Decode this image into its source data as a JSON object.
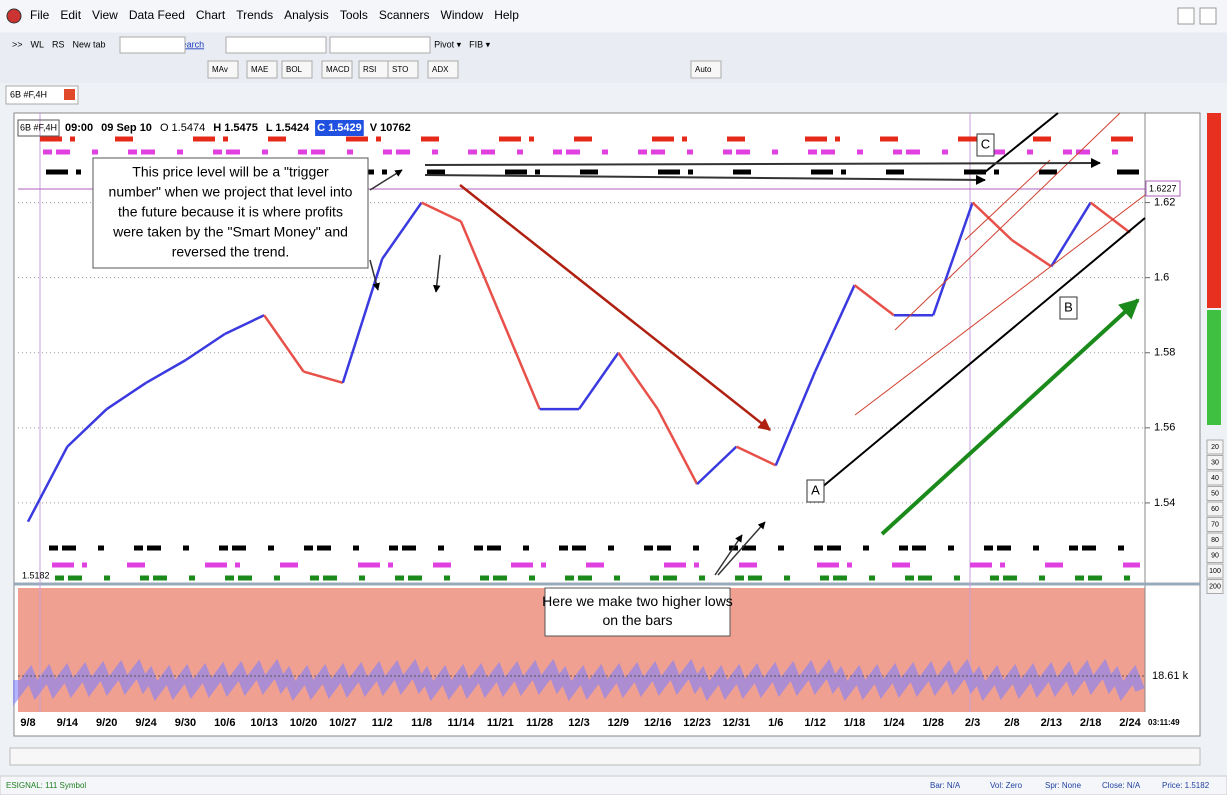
{
  "menu": [
    "File",
    "Edit",
    "View",
    "Data Feed",
    "Chart",
    "Trends",
    "Analysis",
    "Tools",
    "Scanners",
    "Window",
    "Help"
  ],
  "toolbar1": [
    ">>",
    "WL",
    "RS",
    "New tab",
    "Search",
    "Pivot ▾",
    "FIB ▾"
  ],
  "toolbar2": [
    "MAv",
    "MAE",
    "BOL",
    "MACD",
    "RSI",
    "STO",
    "ADX",
    "Auto"
  ],
  "tab": "6B #F,4H",
  "header": {
    "symbol": "6B #F,4H",
    "time": "09:00",
    "date": "09 Sep 10",
    "open": "O 1.5474",
    "high": "H 1.5475",
    "low": "L 1.5424",
    "close": "C 1.5429",
    "volume": "V 10762"
  },
  "chart_data": {
    "type": "line",
    "categories": [
      "9/8",
      "9/14",
      "9/20",
      "9/24",
      "9/30",
      "10/6",
      "10/13",
      "10/20",
      "10/27",
      "11/2",
      "11/8",
      "11/14",
      "11/21",
      "11/28",
      "12/3",
      "12/9",
      "12/16",
      "12/23",
      "12/31",
      "1/6",
      "1/12",
      "1/18",
      "1/24",
      "1/28",
      "2/3",
      "2/8",
      "2/13",
      "2/18",
      "2/24"
    ],
    "values": [
      1.535,
      1.555,
      1.565,
      1.572,
      1.578,
      1.585,
      1.59,
      1.575,
      1.572,
      1.605,
      1.62,
      1.615,
      1.59,
      1.565,
      1.565,
      1.58,
      1.565,
      1.545,
      1.555,
      1.55,
      1.575,
      1.598,
      1.59,
      1.59,
      1.62,
      1.61,
      1.603,
      1.62,
      1.612
    ],
    "up_color": "#3a3ae0",
    "down_color": "#e8504a",
    "ylim": [
      1.52,
      1.642
    ],
    "yticks": [
      1.54,
      1.56,
      1.58,
      1.6,
      1.62
    ],
    "grid": true
  },
  "low_label": "1.5182",
  "price_tag": "1.6227",
  "volume_label": "18.61 k",
  "clock": "03:11:49",
  "annotations": {
    "trigger": [
      "This price level will be a \"trigger",
      "number\" when we project that level into",
      "the future because it is where profits",
      "were taken by the \"Smart Money\" and",
      "reversed the trend."
    ],
    "higher_lows": [
      "Here we make two higher lows",
      "on the bars"
    ],
    "A": "A",
    "B": "B",
    "C": "C"
  },
  "side_scale": [
    "20",
    "30",
    "40",
    "50",
    "60",
    "70",
    "80",
    "90",
    "100",
    "200"
  ],
  "status": {
    "left": "ESIGNAL: 111 Symbol",
    "bar": "Bar: N/A",
    "vol": "Vol: Zero",
    "spr": "Spr: None",
    "close": "Close: N/A",
    "price": "Price: 1.5182"
  }
}
